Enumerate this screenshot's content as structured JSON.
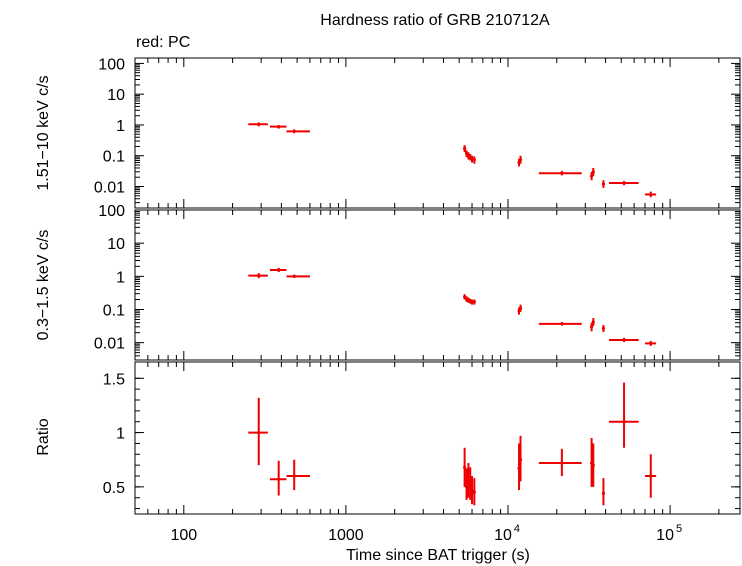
{
  "chart_data": {
    "title": "Hardness ratio of GRB 210712A",
    "legend": "red: PC",
    "xlabel": "Time since BAT trigger (s)",
    "xscale": "log",
    "xlim": [
      50,
      270000
    ],
    "xticks": [
      {
        "value": 100,
        "label": "100"
      },
      {
        "value": 1000,
        "label": "1000"
      },
      {
        "value": 10000,
        "label": "10",
        "exp": "4"
      },
      {
        "value": 100000,
        "label": "10",
        "exp": "5"
      }
    ],
    "panels": [
      {
        "name": "hard",
        "ylabel": "1.51−10 keV c/s",
        "yscale": "log",
        "ylim": [
          0.002,
          150
        ],
        "yticks": [
          {
            "value": 100,
            "label": "100"
          },
          {
            "value": 10,
            "label": "10"
          },
          {
            "value": 1,
            "label": "1"
          },
          {
            "value": 0.1,
            "label": "0.1"
          },
          {
            "value": 0.01,
            "label": "0.01"
          }
        ],
        "points": [
          {
            "x": 290,
            "xlo": 250,
            "xhi": 330,
            "y": 1.05,
            "ylo": 0.9,
            "yhi": 1.2
          },
          {
            "x": 385,
            "xlo": 340,
            "xhi": 430,
            "y": 0.88,
            "ylo": 0.76,
            "yhi": 1.0
          },
          {
            "x": 480,
            "xlo": 430,
            "xhi": 600,
            "y": 0.62,
            "ylo": 0.54,
            "yhi": 0.72
          },
          {
            "x": 5400,
            "xlo": 5330,
            "xhi": 5470,
            "y": 0.17,
            "ylo": 0.13,
            "yhi": 0.22
          },
          {
            "x": 5550,
            "xlo": 5480,
            "xhi": 5620,
            "y": 0.12,
            "ylo": 0.09,
            "yhi": 0.15
          },
          {
            "x": 5700,
            "xlo": 5630,
            "xhi": 5770,
            "y": 0.1,
            "ylo": 0.075,
            "yhi": 0.13
          },
          {
            "x": 5850,
            "xlo": 5780,
            "xhi": 5920,
            "y": 0.09,
            "ylo": 0.07,
            "yhi": 0.115
          },
          {
            "x": 6000,
            "xlo": 5930,
            "xhi": 6080,
            "y": 0.08,
            "ylo": 0.06,
            "yhi": 0.1
          },
          {
            "x": 6200,
            "xlo": 6100,
            "xhi": 6300,
            "y": 0.075,
            "ylo": 0.055,
            "yhi": 0.095
          },
          {
            "x": 11700,
            "xlo": 11550,
            "xhi": 11850,
            "y": 0.06,
            "ylo": 0.045,
            "yhi": 0.08
          },
          {
            "x": 11950,
            "xlo": 11850,
            "xhi": 12050,
            "y": 0.075,
            "ylo": 0.055,
            "yhi": 0.1
          },
          {
            "x": 21500,
            "xlo": 15500,
            "xhi": 28500,
            "y": 0.027,
            "ylo": 0.023,
            "yhi": 0.032
          },
          {
            "x": 32800,
            "xlo": 32400,
            "xhi": 33200,
            "y": 0.022,
            "ylo": 0.016,
            "yhi": 0.03
          },
          {
            "x": 33600,
            "xlo": 33200,
            "xhi": 34000,
            "y": 0.03,
            "ylo": 0.022,
            "yhi": 0.04
          },
          {
            "x": 38800,
            "xlo": 38000,
            "xhi": 39600,
            "y": 0.012,
            "ylo": 0.009,
            "yhi": 0.016
          },
          {
            "x": 52000,
            "xlo": 42000,
            "xhi": 64000,
            "y": 0.013,
            "ylo": 0.011,
            "yhi": 0.015
          },
          {
            "x": 76000,
            "xlo": 70000,
            "xhi": 82000,
            "y": 0.0055,
            "ylo": 0.0045,
            "yhi": 0.0068
          }
        ]
      },
      {
        "name": "soft",
        "ylabel": "0.3−1.5 keV c/s",
        "yscale": "log",
        "ylim": [
          0.003,
          100
        ],
        "yticks": [
          {
            "value": 100,
            "label": "100"
          },
          {
            "value": 10,
            "label": "10"
          },
          {
            "value": 1,
            "label": "1"
          },
          {
            "value": 0.1,
            "label": "0.1"
          },
          {
            "value": 0.01,
            "label": "0.01"
          }
        ],
        "points": [
          {
            "x": 290,
            "xlo": 250,
            "xhi": 330,
            "y": 1.05,
            "ylo": 0.88,
            "yhi": 1.25
          },
          {
            "x": 385,
            "xlo": 340,
            "xhi": 430,
            "y": 1.55,
            "ylo": 1.35,
            "yhi": 1.8
          },
          {
            "x": 480,
            "xlo": 430,
            "xhi": 600,
            "y": 1.0,
            "ylo": 0.9,
            "yhi": 1.12
          },
          {
            "x": 5400,
            "xlo": 5330,
            "xhi": 5470,
            "y": 0.24,
            "ylo": 0.2,
            "yhi": 0.29
          },
          {
            "x": 5550,
            "xlo": 5480,
            "xhi": 5620,
            "y": 0.21,
            "ylo": 0.17,
            "yhi": 0.25
          },
          {
            "x": 5700,
            "xlo": 5630,
            "xhi": 5770,
            "y": 0.19,
            "ylo": 0.16,
            "yhi": 0.23
          },
          {
            "x": 5850,
            "xlo": 5780,
            "xhi": 5920,
            "y": 0.18,
            "ylo": 0.15,
            "yhi": 0.21
          },
          {
            "x": 6000,
            "xlo": 5930,
            "xhi": 6080,
            "y": 0.17,
            "ylo": 0.14,
            "yhi": 0.2
          },
          {
            "x": 6200,
            "xlo": 6100,
            "xhi": 6300,
            "y": 0.17,
            "ylo": 0.14,
            "yhi": 0.2
          },
          {
            "x": 11700,
            "xlo": 11550,
            "xhi": 11850,
            "y": 0.09,
            "ylo": 0.07,
            "yhi": 0.115
          },
          {
            "x": 11950,
            "xlo": 11850,
            "xhi": 12050,
            "y": 0.11,
            "ylo": 0.085,
            "yhi": 0.14
          },
          {
            "x": 21500,
            "xlo": 15500,
            "xhi": 28500,
            "y": 0.037,
            "ylo": 0.033,
            "yhi": 0.042
          },
          {
            "x": 32800,
            "xlo": 32400,
            "xhi": 33200,
            "y": 0.03,
            "ylo": 0.022,
            "yhi": 0.04
          },
          {
            "x": 33600,
            "xlo": 33200,
            "xhi": 34000,
            "y": 0.042,
            "ylo": 0.032,
            "yhi": 0.055
          },
          {
            "x": 38800,
            "xlo": 38000,
            "xhi": 39600,
            "y": 0.027,
            "ylo": 0.021,
            "yhi": 0.034
          },
          {
            "x": 52000,
            "xlo": 42000,
            "xhi": 64000,
            "y": 0.012,
            "ylo": 0.0105,
            "yhi": 0.014
          },
          {
            "x": 76000,
            "xlo": 70000,
            "xhi": 82000,
            "y": 0.0095,
            "ylo": 0.008,
            "yhi": 0.0112
          }
        ]
      },
      {
        "name": "ratio",
        "ylabel": "Ratio",
        "yscale": "linear",
        "ylim": [
          0.25,
          1.65
        ],
        "yticks": [
          {
            "value": 1.5,
            "label": "1.5"
          },
          {
            "value": 1,
            "label": "1"
          },
          {
            "value": 0.5,
            "label": "0.5"
          }
        ],
        "points": [
          {
            "x": 290,
            "xlo": 250,
            "xhi": 330,
            "y": 1.0,
            "ylo": 0.7,
            "yhi": 1.32
          },
          {
            "x": 385,
            "xlo": 340,
            "xhi": 430,
            "y": 0.57,
            "ylo": 0.42,
            "yhi": 0.74
          },
          {
            "x": 480,
            "xlo": 430,
            "xhi": 600,
            "y": 0.6,
            "ylo": 0.47,
            "yhi": 0.75
          },
          {
            "x": 5400,
            "xlo": 5330,
            "xhi": 5470,
            "y": 0.68,
            "ylo": 0.5,
            "yhi": 0.86
          },
          {
            "x": 5550,
            "xlo": 5480,
            "xhi": 5620,
            "y": 0.5,
            "ylo": 0.38,
            "yhi": 0.67
          },
          {
            "x": 5700,
            "xlo": 5630,
            "xhi": 5770,
            "y": 0.55,
            "ylo": 0.4,
            "yhi": 0.72
          },
          {
            "x": 5850,
            "xlo": 5780,
            "xhi": 5920,
            "y": 0.52,
            "ylo": 0.38,
            "yhi": 0.68
          },
          {
            "x": 6000,
            "xlo": 5930,
            "xhi": 6080,
            "y": 0.46,
            "ylo": 0.34,
            "yhi": 0.6
          },
          {
            "x": 6200,
            "xlo": 6100,
            "xhi": 6300,
            "y": 0.45,
            "ylo": 0.33,
            "yhi": 0.58
          },
          {
            "x": 11700,
            "xlo": 11550,
            "xhi": 11850,
            "y": 0.67,
            "ylo": 0.47,
            "yhi": 0.9
          },
          {
            "x": 11950,
            "xlo": 11850,
            "xhi": 12050,
            "y": 0.75,
            "ylo": 0.55,
            "yhi": 0.97
          },
          {
            "x": 21500,
            "xlo": 15500,
            "xhi": 28500,
            "y": 0.72,
            "ylo": 0.6,
            "yhi": 0.85
          },
          {
            "x": 32800,
            "xlo": 32400,
            "xhi": 33200,
            "y": 0.72,
            "ylo": 0.5,
            "yhi": 0.95
          },
          {
            "x": 33600,
            "xlo": 33200,
            "xhi": 34000,
            "y": 0.7,
            "ylo": 0.5,
            "yhi": 0.9
          },
          {
            "x": 38800,
            "xlo": 38000,
            "xhi": 39600,
            "y": 0.44,
            "ylo": 0.33,
            "yhi": 0.58
          },
          {
            "x": 52000,
            "xlo": 42000,
            "xhi": 64000,
            "y": 1.1,
            "ylo": 0.86,
            "yhi": 1.46
          },
          {
            "x": 76000,
            "xlo": 70000,
            "xhi": 82000,
            "y": 0.6,
            "ylo": 0.4,
            "yhi": 0.8
          }
        ]
      }
    ]
  }
}
